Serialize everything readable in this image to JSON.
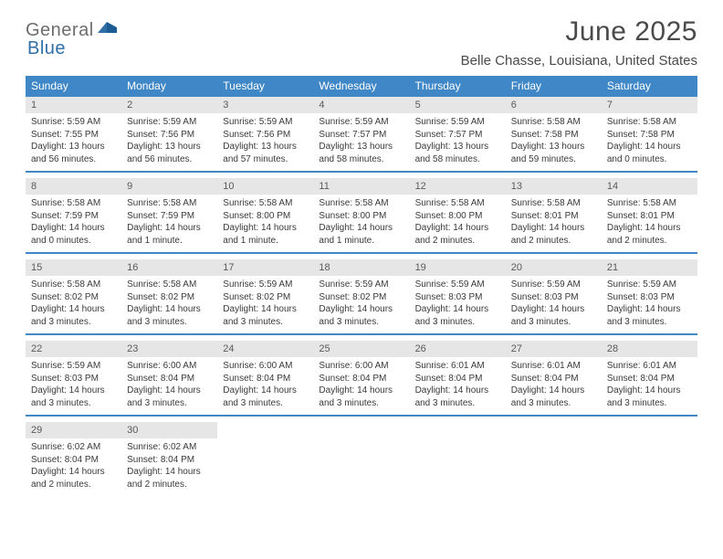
{
  "logo": {
    "text1": "General",
    "text2": "Blue"
  },
  "title": "June 2025",
  "location": "Belle Chasse, Louisiana, United States",
  "colors": {
    "header_bg": "#3f87c6",
    "daynum_bg": "#e6e6e6",
    "rule": "#3f87c6",
    "text": "#3a3a3a",
    "logo_gray": "#6d6d6d",
    "logo_blue": "#2f6fa8"
  },
  "weekdays": [
    "Sunday",
    "Monday",
    "Tuesday",
    "Wednesday",
    "Thursday",
    "Friday",
    "Saturday"
  ],
  "weeks": [
    [
      {
        "n": "1",
        "sr": "5:59 AM",
        "ss": "7:55 PM",
        "dl": "13 hours and 56 minutes."
      },
      {
        "n": "2",
        "sr": "5:59 AM",
        "ss": "7:56 PM",
        "dl": "13 hours and 56 minutes."
      },
      {
        "n": "3",
        "sr": "5:59 AM",
        "ss": "7:56 PM",
        "dl": "13 hours and 57 minutes."
      },
      {
        "n": "4",
        "sr": "5:59 AM",
        "ss": "7:57 PM",
        "dl": "13 hours and 58 minutes."
      },
      {
        "n": "5",
        "sr": "5:59 AM",
        "ss": "7:57 PM",
        "dl": "13 hours and 58 minutes."
      },
      {
        "n": "6",
        "sr": "5:58 AM",
        "ss": "7:58 PM",
        "dl": "13 hours and 59 minutes."
      },
      {
        "n": "7",
        "sr": "5:58 AM",
        "ss": "7:58 PM",
        "dl": "14 hours and 0 minutes."
      }
    ],
    [
      {
        "n": "8",
        "sr": "5:58 AM",
        "ss": "7:59 PM",
        "dl": "14 hours and 0 minutes."
      },
      {
        "n": "9",
        "sr": "5:58 AM",
        "ss": "7:59 PM",
        "dl": "14 hours and 1 minute."
      },
      {
        "n": "10",
        "sr": "5:58 AM",
        "ss": "8:00 PM",
        "dl": "14 hours and 1 minute."
      },
      {
        "n": "11",
        "sr": "5:58 AM",
        "ss": "8:00 PM",
        "dl": "14 hours and 1 minute."
      },
      {
        "n": "12",
        "sr": "5:58 AM",
        "ss": "8:00 PM",
        "dl": "14 hours and 2 minutes."
      },
      {
        "n": "13",
        "sr": "5:58 AM",
        "ss": "8:01 PM",
        "dl": "14 hours and 2 minutes."
      },
      {
        "n": "14",
        "sr": "5:58 AM",
        "ss": "8:01 PM",
        "dl": "14 hours and 2 minutes."
      }
    ],
    [
      {
        "n": "15",
        "sr": "5:58 AM",
        "ss": "8:02 PM",
        "dl": "14 hours and 3 minutes."
      },
      {
        "n": "16",
        "sr": "5:58 AM",
        "ss": "8:02 PM",
        "dl": "14 hours and 3 minutes."
      },
      {
        "n": "17",
        "sr": "5:59 AM",
        "ss": "8:02 PM",
        "dl": "14 hours and 3 minutes."
      },
      {
        "n": "18",
        "sr": "5:59 AM",
        "ss": "8:02 PM",
        "dl": "14 hours and 3 minutes."
      },
      {
        "n": "19",
        "sr": "5:59 AM",
        "ss": "8:03 PM",
        "dl": "14 hours and 3 minutes."
      },
      {
        "n": "20",
        "sr": "5:59 AM",
        "ss": "8:03 PM",
        "dl": "14 hours and 3 minutes."
      },
      {
        "n": "21",
        "sr": "5:59 AM",
        "ss": "8:03 PM",
        "dl": "14 hours and 3 minutes."
      }
    ],
    [
      {
        "n": "22",
        "sr": "5:59 AM",
        "ss": "8:03 PM",
        "dl": "14 hours and 3 minutes."
      },
      {
        "n": "23",
        "sr": "6:00 AM",
        "ss": "8:04 PM",
        "dl": "14 hours and 3 minutes."
      },
      {
        "n": "24",
        "sr": "6:00 AM",
        "ss": "8:04 PM",
        "dl": "14 hours and 3 minutes."
      },
      {
        "n": "25",
        "sr": "6:00 AM",
        "ss": "8:04 PM",
        "dl": "14 hours and 3 minutes."
      },
      {
        "n": "26",
        "sr": "6:01 AM",
        "ss": "8:04 PM",
        "dl": "14 hours and 3 minutes."
      },
      {
        "n": "27",
        "sr": "6:01 AM",
        "ss": "8:04 PM",
        "dl": "14 hours and 3 minutes."
      },
      {
        "n": "28",
        "sr": "6:01 AM",
        "ss": "8:04 PM",
        "dl": "14 hours and 3 minutes."
      }
    ],
    [
      {
        "n": "29",
        "sr": "6:02 AM",
        "ss": "8:04 PM",
        "dl": "14 hours and 2 minutes."
      },
      {
        "n": "30",
        "sr": "6:02 AM",
        "ss": "8:04 PM",
        "dl": "14 hours and 2 minutes."
      },
      null,
      null,
      null,
      null,
      null
    ]
  ],
  "labels": {
    "sunrise": "Sunrise:",
    "sunset": "Sunset:",
    "daylight": "Daylight:"
  }
}
